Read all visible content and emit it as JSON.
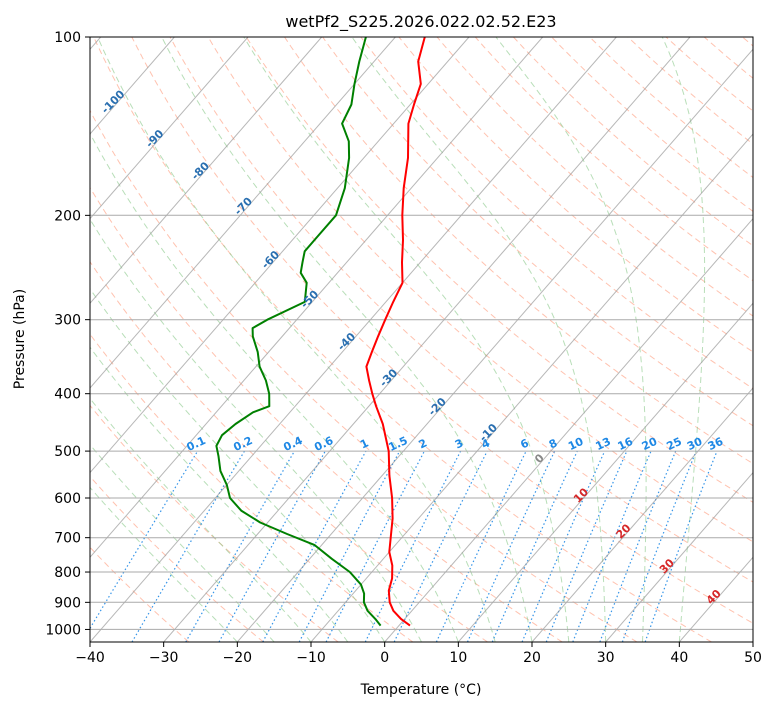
{
  "chart_data": {
    "type": "line",
    "title": "wetPf2_S225.2026.022.02.52.E23",
    "xlabel": "Temperature (°C)",
    "ylabel": "Pressure (hPa)",
    "xlim": [
      -40,
      50
    ],
    "ylim": [
      1050,
      100
    ],
    "y_scale": "log",
    "skew": true,
    "grid": true,
    "x_ticks": [
      "−40",
      "−30",
      "−20",
      "−10",
      "0",
      "10",
      "20",
      "30",
      "40",
      "50"
    ],
    "x_tick_values": [
      -40,
      -30,
      -20,
      -10,
      0,
      10,
      20,
      30,
      40,
      50
    ],
    "y_ticks": [
      "1000",
      "900",
      "800",
      "700",
      "600",
      "500",
      "400",
      "300",
      "200",
      "100"
    ],
    "y_tick_values": [
      1000,
      900,
      800,
      700,
      600,
      500,
      400,
      300,
      200,
      100
    ],
    "isotherm_labels": [
      "-100",
      "-90",
      "-80",
      "-70",
      "-60",
      "-50",
      "-40",
      "-30",
      "-20",
      "-10"
    ],
    "mixing_ratio_labels": [
      "0.1",
      "0.2",
      "0.4",
      "0.6",
      "1",
      "1.5",
      "2",
      "3",
      "4",
      "6",
      "8",
      "10",
      "13",
      "16",
      "20",
      "25",
      "30",
      "36"
    ],
    "mixing_ratio_values": [
      0.1,
      0.2,
      0.4,
      0.6,
      1,
      1.5,
      2,
      3,
      4,
      6,
      8,
      10,
      13,
      16,
      20,
      25,
      30,
      36
    ],
    "isotherm_marker_labels": [
      "0",
      "10",
      "20",
      "30",
      "40"
    ],
    "series": [
      {
        "color": "#ff0000",
        "pressure": [
          985,
          960,
          930,
          900,
          860,
          820,
          780,
          740,
          700,
          650,
          600,
          550,
          500,
          450,
          420,
          400,
          380,
          360,
          340,
          320,
          300,
          280,
          260,
          240,
          220,
          200,
          180,
          160,
          140,
          130,
          120,
          110,
          100
        ],
        "temperature": [
          1.5,
          -0.5,
          -2.5,
          -4,
          -5.5,
          -6.5,
          -8,
          -10,
          -11.5,
          -13.5,
          -16,
          -19,
          -22,
          -26,
          -29,
          -31,
          -33,
          -35,
          -36,
          -37,
          -38,
          -39,
          -40,
          -42.5,
          -45,
          -48,
          -51,
          -54,
          -58,
          -59.5,
          -61,
          -64,
          -66
        ]
      },
      {
        "color": "#008000",
        "pressure": [
          985,
          960,
          930,
          900,
          870,
          840,
          800,
          760,
          720,
          690,
          660,
          630,
          600,
          570,
          540,
          510,
          490,
          470,
          450,
          430,
          420,
          400,
          380,
          360,
          340,
          320,
          310,
          300,
          280,
          260,
          250,
          240,
          230,
          220,
          200,
          180,
          160,
          150,
          140,
          130,
          120,
          110,
          100
        ],
        "dewpoint": [
          -2.5,
          -4,
          -6,
          -7.5,
          -8.5,
          -10,
          -13,
          -17,
          -21,
          -26,
          -31,
          -35,
          -38,
          -40,
          -42.5,
          -44.5,
          -46,
          -46.5,
          -46,
          -45,
          -43.5,
          -45,
          -47,
          -49.5,
          -51.5,
          -54,
          -55,
          -54,
          -51,
          -53,
          -55,
          -56,
          -57,
          -57,
          -57,
          -59,
          -62,
          -64,
          -67,
          -68,
          -70,
          -72,
          -74
        ]
      }
    ]
  }
}
